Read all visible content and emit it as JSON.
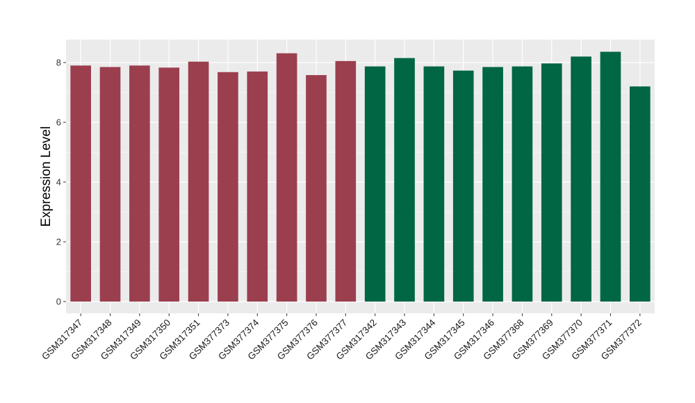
{
  "chart_data": {
    "type": "bar",
    "title": "",
    "xlabel": "",
    "ylabel": "Expression Level",
    "ylim": [
      0,
      8.75
    ],
    "yticks": [
      0,
      2,
      4,
      6,
      8
    ],
    "grid": true,
    "background": "#ebebeb",
    "categories": [
      "GSM317347",
      "GSM317348",
      "GSM317349",
      "GSM317350",
      "GSM317351",
      "GSM377373",
      "GSM377374",
      "GSM377375",
      "GSM377376",
      "GSM377377",
      "GSM317342",
      "GSM317343",
      "GSM317344",
      "GSM317345",
      "GSM317346",
      "GSM377368",
      "GSM377369",
      "GSM377370",
      "GSM377371",
      "GSM377372"
    ],
    "values": [
      7.9,
      7.85,
      7.9,
      7.83,
      8.03,
      7.68,
      7.7,
      8.31,
      7.58,
      8.05,
      7.87,
      8.15,
      7.87,
      7.73,
      7.85,
      7.87,
      7.97,
      8.2,
      8.36,
      7.2
    ],
    "bar_colors": [
      "#9b3f4f",
      "#9b3f4f",
      "#9b3f4f",
      "#9b3f4f",
      "#9b3f4f",
      "#9b3f4f",
      "#9b3f4f",
      "#9b3f4f",
      "#9b3f4f",
      "#9b3f4f",
      "#006644",
      "#006644",
      "#006644",
      "#006644",
      "#006644",
      "#006644",
      "#006644",
      "#006644",
      "#006644",
      "#006644"
    ]
  }
}
